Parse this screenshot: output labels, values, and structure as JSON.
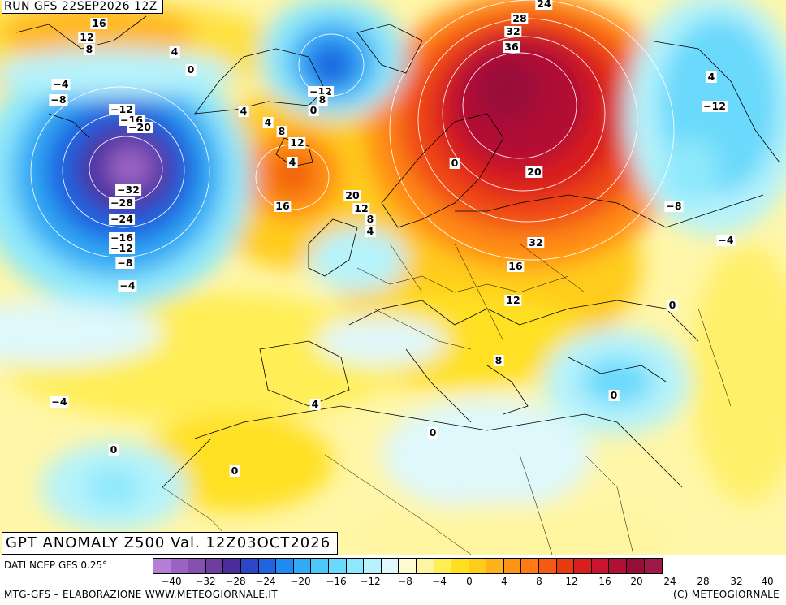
{
  "header": {
    "run": "RUN GFS 22SEP2026 12Z"
  },
  "map": {
    "title": "GPT ANOMALY Z500 Val. 12Z03OCT2026",
    "contour_labels": [
      {
        "text": "24"
      },
      {
        "text": "28"
      },
      {
        "text": "32"
      },
      {
        "text": "36"
      },
      {
        "text": "16"
      },
      {
        "text": "12"
      },
      {
        "text": "8"
      },
      {
        "text": "4"
      },
      {
        "text": "0"
      },
      {
        "text": "−4"
      },
      {
        "text": "−8"
      },
      {
        "text": "−12"
      },
      {
        "text": "−16"
      },
      {
        "text": "−20"
      },
      {
        "text": "−32"
      },
      {
        "text": "−28"
      },
      {
        "text": "−24"
      },
      {
        "text": "−16"
      },
      {
        "text": "−12"
      },
      {
        "text": "−8"
      },
      {
        "text": "−4"
      },
      {
        "text": "−12"
      },
      {
        "text": "8"
      },
      {
        "text": "0"
      },
      {
        "text": "4"
      },
      {
        "text": "4"
      },
      {
        "text": "8"
      },
      {
        "text": "12"
      },
      {
        "text": "16"
      },
      {
        "text": "20"
      },
      {
        "text": "12"
      },
      {
        "text": "8"
      },
      {
        "text": "4"
      },
      {
        "text": "0"
      },
      {
        "text": "20"
      },
      {
        "text": "32"
      },
      {
        "text": "16"
      },
      {
        "text": "12"
      },
      {
        "text": "8"
      },
      {
        "text": "4"
      },
      {
        "text": "−12"
      },
      {
        "text": "−8"
      },
      {
        "text": "−4"
      },
      {
        "text": "0"
      },
      {
        "text": "0"
      },
      {
        "text": "−4"
      },
      {
        "text": "4"
      },
      {
        "text": "0"
      },
      {
        "text": "0"
      },
      {
        "text": "0"
      },
      {
        "text": "4"
      }
    ]
  },
  "legend": {
    "source": "DATI NCEP GFS 0.25°",
    "colors": [
      "#b57fd6",
      "#9a63c4",
      "#8550b0",
      "#6e3da0",
      "#4a2c9a",
      "#2f45c8",
      "#1f64e0",
      "#1f8af0",
      "#33aaf5",
      "#4cc8fa",
      "#6ad9fb",
      "#8ee8fb",
      "#b6f3fb",
      "#dff8fb",
      "#fffbd0",
      "#fff5a0",
      "#ffee55",
      "#ffe020",
      "#ffcc1a",
      "#ffb31a",
      "#ff9416",
      "#ff7a14",
      "#f45a12",
      "#e63a10",
      "#d91e1e",
      "#c8142c",
      "#b01034",
      "#980c38",
      "#a0184a"
    ],
    "tick_labels": [
      "−40",
      "−32",
      "−28",
      "−24",
      "−20",
      "−16",
      "−12",
      "−8",
      "−4",
      "0",
      "4",
      "8",
      "12",
      "16",
      "20",
      "24",
      "28",
      "32",
      "40"
    ]
  },
  "footer": {
    "left": "MTG-GFS – ELABORAZIONE WWW.METEOGIORNALE.IT",
    "right": "(C) METEOGIORNALE"
  }
}
